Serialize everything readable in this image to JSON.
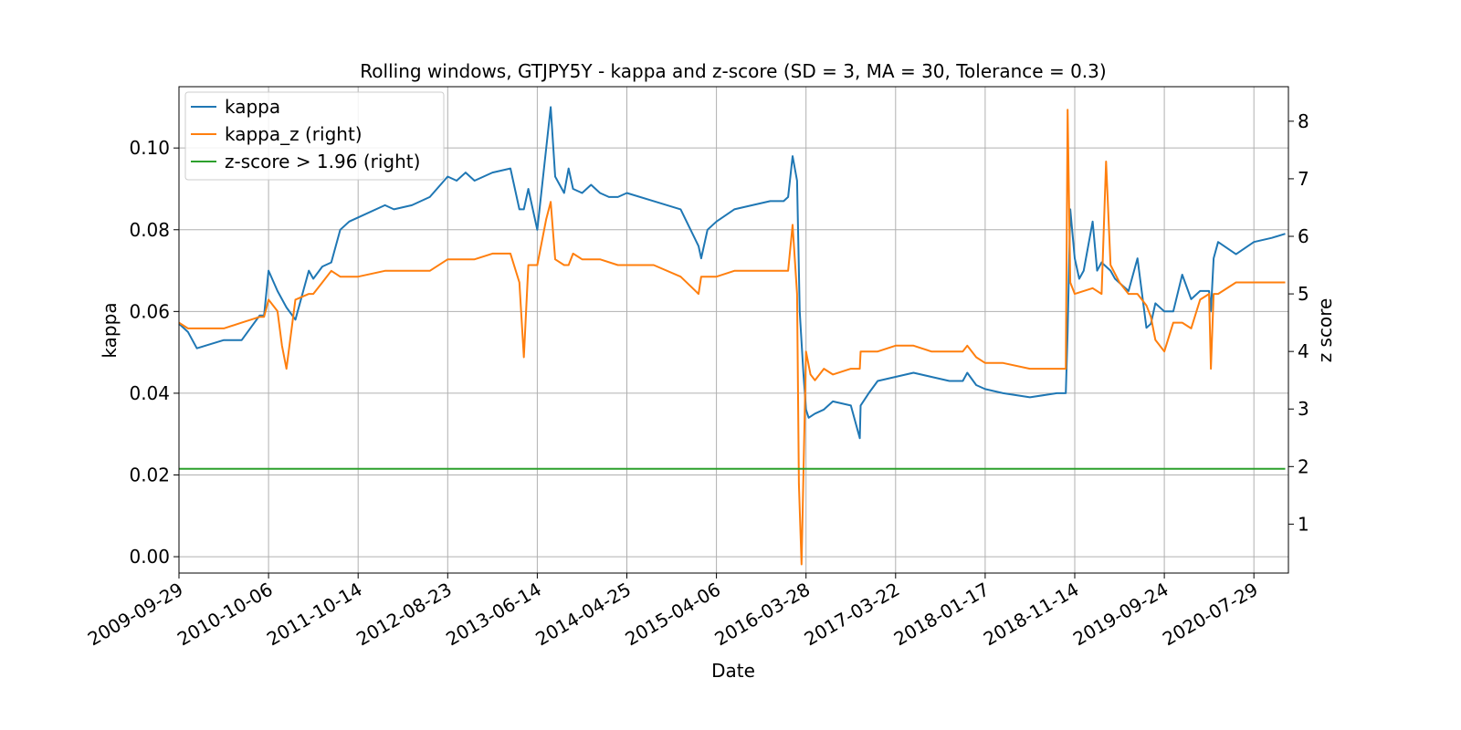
{
  "chart_data": {
    "type": "line",
    "title": "Rolling windows, GTJPY5Y - kappa and z-score (SD = 3, MA = 30, Tolerance  = 0.3)",
    "xlabel": "Date",
    "ylabel": "kappa",
    "y2label": "z score",
    "grid": true,
    "legend_position": "upper-left",
    "x_ticks": [
      "2009-09-29",
      "2010-10-06",
      "2011-10-14",
      "2012-08-23",
      "2013-06-14",
      "2014-04-25",
      "2015-04-06",
      "2016-03-28",
      "2017-03-22",
      "2018-01-17",
      "2018-11-14",
      "2019-09-24",
      "2020-07-29"
    ],
    "ylim": [
      -0.004,
      0.115
    ],
    "y_ticks": [
      0.0,
      0.02,
      0.04,
      0.06,
      0.08,
      0.1
    ],
    "y2lim": [
      0.15,
      8.6
    ],
    "y2_ticks": [
      1,
      2,
      3,
      4,
      5,
      6,
      7,
      8
    ],
    "series": [
      {
        "name": "kappa",
        "axis": "left",
        "color": "#1f77b4",
        "x_tick_index": [
          0,
          0.1,
          0.2,
          0.35,
          0.5,
          0.7,
          0.9,
          0.95,
          1.0,
          1.1,
          1.2,
          1.3,
          1.45,
          1.5,
          1.6,
          1.7,
          1.8,
          1.9,
          2.0,
          2.3,
          2.4,
          2.6,
          2.8,
          3.0,
          3.1,
          3.2,
          3.3,
          3.5,
          3.7,
          3.8,
          3.85,
          3.9,
          4.0,
          4.05,
          4.1,
          4.15,
          4.2,
          4.3,
          4.35,
          4.4,
          4.5,
          4.6,
          4.7,
          4.8,
          4.9,
          5.0,
          5.3,
          5.6,
          5.8,
          5.83,
          5.9,
          6.0,
          6.2,
          6.4,
          6.6,
          6.75,
          6.8,
          6.85,
          6.9,
          6.93,
          6.97,
          7.0,
          7.03,
          7.1,
          7.2,
          7.3,
          7.5,
          7.6,
          7.61,
          7.7,
          7.8,
          8.0,
          8.2,
          8.4,
          8.6,
          8.75,
          8.8,
          8.9,
          9.0,
          9.2,
          9.5,
          9.8,
          9.9,
          9.92,
          9.95,
          10.0,
          10.05,
          10.1,
          10.2,
          10.25,
          10.3,
          10.4,
          10.45,
          10.5,
          10.6,
          10.7,
          10.8,
          10.85,
          10.9,
          11.0,
          11.1,
          11.2,
          11.3,
          11.4,
          11.5,
          11.52,
          11.55,
          11.6,
          11.8,
          12.0,
          12.2,
          12.35
        ],
        "values": [
          0.057,
          0.055,
          0.051,
          0.052,
          0.053,
          0.053,
          0.059,
          0.059,
          0.07,
          0.065,
          0.061,
          0.058,
          0.07,
          0.068,
          0.071,
          0.072,
          0.08,
          0.082,
          0.083,
          0.086,
          0.085,
          0.086,
          0.088,
          0.093,
          0.092,
          0.094,
          0.092,
          0.094,
          0.095,
          0.085,
          0.085,
          0.09,
          0.08,
          0.09,
          0.1,
          0.11,
          0.093,
          0.089,
          0.095,
          0.09,
          0.089,
          0.091,
          0.089,
          0.088,
          0.088,
          0.089,
          0.087,
          0.085,
          0.076,
          0.073,
          0.08,
          0.082,
          0.085,
          0.086,
          0.087,
          0.087,
          0.088,
          0.098,
          0.092,
          0.06,
          0.045,
          0.036,
          0.034,
          0.035,
          0.036,
          0.038,
          0.037,
          0.029,
          0.037,
          0.04,
          0.043,
          0.044,
          0.045,
          0.044,
          0.043,
          0.043,
          0.045,
          0.042,
          0.041,
          0.04,
          0.039,
          0.04,
          0.04,
          0.055,
          0.085,
          0.073,
          0.068,
          0.07,
          0.082,
          0.07,
          0.072,
          0.07,
          0.068,
          0.067,
          0.065,
          0.073,
          0.056,
          0.057,
          0.062,
          0.06,
          0.06,
          0.069,
          0.063,
          0.065,
          0.065,
          0.06,
          0.073,
          0.077,
          0.074,
          0.077,
          0.078,
          0.079,
          0.078,
          0.078
        ]
      },
      {
        "name": "kappa_z (right)",
        "axis": "right",
        "color": "#ff7f0e",
        "x_tick_index": [
          0,
          0.1,
          0.2,
          0.35,
          0.5,
          0.7,
          0.9,
          0.95,
          1.0,
          1.1,
          1.15,
          1.2,
          1.3,
          1.45,
          1.5,
          1.6,
          1.7,
          1.8,
          1.9,
          2.0,
          2.3,
          2.6,
          2.8,
          3.0,
          3.3,
          3.5,
          3.7,
          3.8,
          3.85,
          3.9,
          4.0,
          4.05,
          4.1,
          4.15,
          4.2,
          4.3,
          4.35,
          4.4,
          4.5,
          4.7,
          4.9,
          5.0,
          5.3,
          5.6,
          5.8,
          5.83,
          5.9,
          6.0,
          6.2,
          6.4,
          6.6,
          6.75,
          6.8,
          6.85,
          6.9,
          6.92,
          6.95,
          7.0,
          7.05,
          7.1,
          7.2,
          7.3,
          7.5,
          7.6,
          7.61,
          7.7,
          7.8,
          8.0,
          8.2,
          8.4,
          8.6,
          8.75,
          8.8,
          8.9,
          9.0,
          9.2,
          9.5,
          9.8,
          9.85,
          9.9,
          9.92,
          9.95,
          10.0,
          10.2,
          10.3,
          10.35,
          10.4,
          10.5,
          10.6,
          10.7,
          10.8,
          10.85,
          10.9,
          11.0,
          11.1,
          11.2,
          11.3,
          11.4,
          11.5,
          11.52,
          11.55,
          11.6,
          11.8,
          12.0,
          12.2,
          12.35
        ],
        "values": [
          4.5,
          4.4,
          4.4,
          4.4,
          4.4,
          4.5,
          4.6,
          4.6,
          4.9,
          4.7,
          4.1,
          3.7,
          4.9,
          5.0,
          5.0,
          5.2,
          5.4,
          5.3,
          5.3,
          5.3,
          5.4,
          5.4,
          5.4,
          5.6,
          5.6,
          5.7,
          5.7,
          5.2,
          3.9,
          5.5,
          5.5,
          5.9,
          6.3,
          6.6,
          5.6,
          5.5,
          5.5,
          5.7,
          5.6,
          5.6,
          5.5,
          5.5,
          5.5,
          5.3,
          5.0,
          5.3,
          5.3,
          5.3,
          5.4,
          5.4,
          5.4,
          5.4,
          5.4,
          6.2,
          5.0,
          1.7,
          0.3,
          4.0,
          3.6,
          3.5,
          3.7,
          3.6,
          3.7,
          3.7,
          4.0,
          4.0,
          4.0,
          4.1,
          4.1,
          4.0,
          4.0,
          4.0,
          4.1,
          3.9,
          3.8,
          3.8,
          3.7,
          3.7,
          3.7,
          3.7,
          8.2,
          5.2,
          5.0,
          5.1,
          5.0,
          7.3,
          5.5,
          5.2,
          5.0,
          5.0,
          4.8,
          4.6,
          4.2,
          4.0,
          4.5,
          4.5,
          4.4,
          4.9,
          5.0,
          3.7,
          5.0,
          5.0,
          5.2,
          5.2,
          5.2,
          5.2
        ]
      },
      {
        "name": "z-score > 1.96 (right)",
        "axis": "right",
        "color": "#2ca02c",
        "x_tick_index": [
          0,
          12.35
        ],
        "values": [
          1.96,
          1.96
        ]
      }
    ]
  }
}
